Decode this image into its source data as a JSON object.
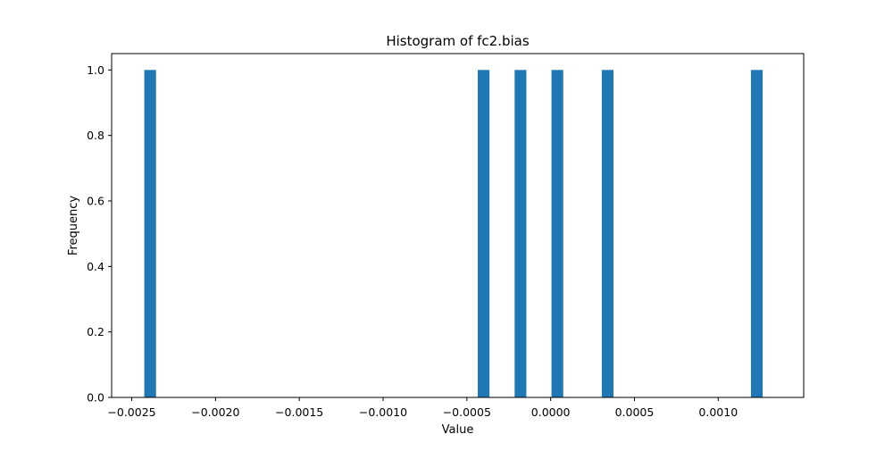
{
  "chart_data": {
    "type": "bar",
    "subtype": "histogram",
    "title": "Histogram of fc2.bias",
    "xlabel": "Value",
    "ylabel": "Frequency",
    "bar_color": "#1f77b4",
    "bin_width": 7e-05,
    "xlim": [
      -0.00262,
      0.00151
    ],
    "ylim": [
      0,
      1.05
    ],
    "grid": false,
    "legend": false,
    "bins": [
      {
        "center": -0.00239,
        "count": 1
      },
      {
        "center": -0.0004,
        "count": 1
      },
      {
        "center": -0.00018,
        "count": 1
      },
      {
        "center": 4e-05,
        "count": 1
      },
      {
        "center": 0.00034,
        "count": 1
      },
      {
        "center": 0.00123,
        "count": 1
      }
    ],
    "x_ticks": [
      {
        "value": -0.0025,
        "label": "−0.0025"
      },
      {
        "value": -0.002,
        "label": "−0.0020"
      },
      {
        "value": -0.0015,
        "label": "−0.0015"
      },
      {
        "value": -0.001,
        "label": "−0.0010"
      },
      {
        "value": -0.0005,
        "label": "−0.0005"
      },
      {
        "value": 0.0,
        "label": "0.0000"
      },
      {
        "value": 0.0005,
        "label": "0.0005"
      },
      {
        "value": 0.001,
        "label": "0.0010"
      }
    ],
    "y_ticks": [
      {
        "value": 0.0,
        "label": "0.0"
      },
      {
        "value": 0.2,
        "label": "0.2"
      },
      {
        "value": 0.4,
        "label": "0.4"
      },
      {
        "value": 0.6,
        "label": "0.6"
      },
      {
        "value": 0.8,
        "label": "0.8"
      },
      {
        "value": 1.0,
        "label": "1.0"
      }
    ]
  }
}
